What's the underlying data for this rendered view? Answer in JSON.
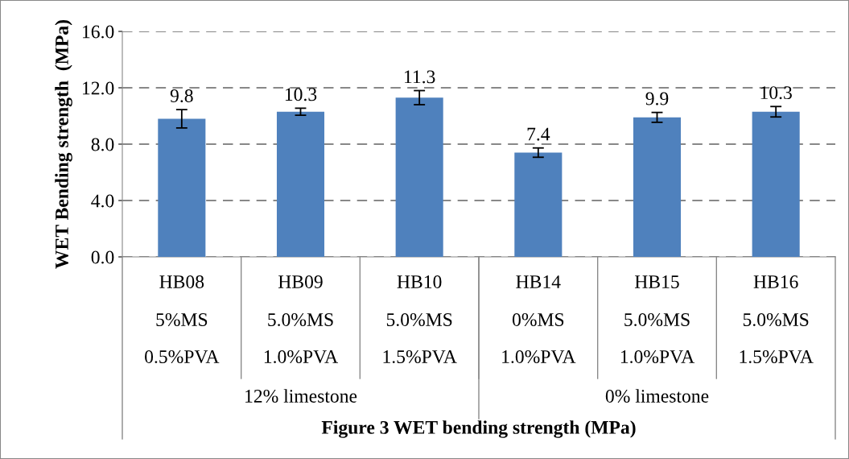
{
  "chart_data": {
    "type": "bar",
    "ylabel": "WET Bending strength  (MPa)",
    "categories": [
      "HB08\n5%MS\n0.5%PVA",
      "HB09\n5.0%MS\n1.0%PVA",
      "HB10\n5.0%MS\n1.5%PVA",
      "HB14\n0%MS\n1.0%PVA",
      "HB15\n5.0%MS\n1.0%PVA",
      "HB16\n5.0%MS\n1.5%PVA"
    ],
    "values": [
      9.8,
      10.3,
      11.3,
      7.4,
      9.9,
      10.3
    ],
    "errors": [
      0.65,
      0.25,
      0.5,
      0.33,
      0.35,
      0.37
    ],
    "color": "#4f81bd",
    "data_labels": true,
    "ylim": [
      0,
      16
    ],
    "yticks": [
      {
        "value": 0,
        "label": "0.0"
      },
      {
        "value": 4,
        "label": "4.0"
      },
      {
        "value": 8,
        "label": "8.0"
      },
      {
        "value": 12,
        "label": "12.0"
      },
      {
        "value": 16,
        "label": "16.0"
      }
    ],
    "grid": "y",
    "annotations": [
      "12% limestone",
      "0% limestone",
      "Figure 3 WET bending strength (MPa)"
    ]
  }
}
